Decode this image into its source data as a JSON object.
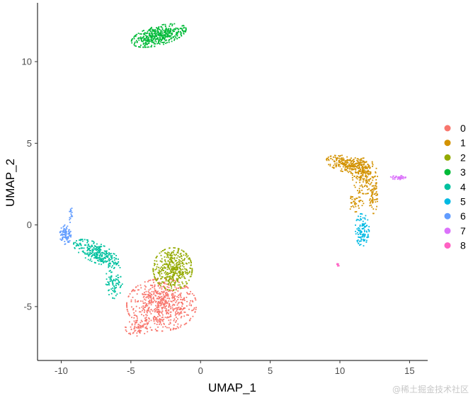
{
  "chart_data": {
    "type": "scatter",
    "xlabel": "UMAP_1",
    "ylabel": "UMAP_2",
    "xlim": [
      -11.7,
      16.3
    ],
    "ylim": [
      -8.3,
      13.6
    ],
    "x_ticks": [
      -10,
      -5,
      0,
      5,
      10,
      15
    ],
    "y_ticks": [
      -5,
      0,
      5,
      10
    ],
    "x_tick_labels": [
      "-10",
      "-5",
      "0",
      "5",
      "10",
      "15"
    ],
    "y_tick_labels": [
      "-5",
      "0",
      "5",
      "10"
    ],
    "legend_position": "right",
    "grid": false,
    "series": [
      {
        "name": "0",
        "color": "#F8766D",
        "clusters": [
          {
            "cx": -2.8,
            "cy": -4.9,
            "rx": 2.5,
            "ry": 1.6,
            "angle": 0,
            "n": 650
          },
          {
            "cx": -4.5,
            "cy": -6.3,
            "rx": 0.9,
            "ry": 0.5,
            "angle": 0,
            "n": 60
          }
        ]
      },
      {
        "name": "1",
        "color": "#D39200",
        "clusters": [
          {
            "cx": 10.6,
            "cy": 3.7,
            "rx": 1.6,
            "ry": 0.5,
            "angle": -10,
            "n": 260
          },
          {
            "cx": 11.8,
            "cy": 3.0,
            "rx": 0.9,
            "ry": 1.1,
            "angle": 0,
            "n": 180
          },
          {
            "cx": 12.4,
            "cy": 1.7,
            "rx": 0.3,
            "ry": 1.0,
            "angle": 0,
            "n": 60
          },
          {
            "cx": 11.1,
            "cy": 1.4,
            "rx": 0.6,
            "ry": 0.6,
            "angle": 0,
            "n": 40
          }
        ]
      },
      {
        "name": "2",
        "color": "#93AA00",
        "clusters": [
          {
            "cx": -2.0,
            "cy": -2.7,
            "rx": 1.4,
            "ry": 1.3,
            "angle": 0,
            "n": 420
          }
        ]
      },
      {
        "name": "3",
        "color": "#00BA38",
        "clusters": [
          {
            "cx": -3.0,
            "cy": 11.6,
            "rx": 2.0,
            "ry": 0.6,
            "angle": 12,
            "n": 420
          }
        ]
      },
      {
        "name": "4",
        "color": "#00C19F",
        "clusters": [
          {
            "cx": -7.5,
            "cy": -1.7,
            "rx": 1.7,
            "ry": 0.6,
            "angle": -20,
            "n": 280
          },
          {
            "cx": -6.2,
            "cy": -3.4,
            "rx": 0.6,
            "ry": 1.1,
            "angle": 0,
            "n": 90
          }
        ]
      },
      {
        "name": "5",
        "color": "#00B9E3",
        "clusters": [
          {
            "cx": 11.6,
            "cy": -0.3,
            "rx": 0.5,
            "ry": 1.0,
            "angle": 0,
            "n": 110
          }
        ]
      },
      {
        "name": "6",
        "color": "#619CFF",
        "clusters": [
          {
            "cx": -9.7,
            "cy": -0.6,
            "rx": 0.4,
            "ry": 0.6,
            "angle": 0,
            "n": 90
          },
          {
            "cx": -9.3,
            "cy": 0.7,
            "rx": 0.15,
            "ry": 0.6,
            "angle": 0,
            "n": 15
          }
        ]
      },
      {
        "name": "7",
        "color": "#DB72FB",
        "clusters": [
          {
            "cx": 14.2,
            "cy": 2.9,
            "rx": 0.6,
            "ry": 0.12,
            "angle": 0,
            "n": 35
          }
        ]
      },
      {
        "name": "8",
        "color": "#FF61C3",
        "clusters": [
          {
            "cx": 9.85,
            "cy": -2.45,
            "rx": 0.1,
            "ry": 0.1,
            "angle": 0,
            "n": 6
          }
        ]
      }
    ]
  },
  "watermark": "@稀土掘金技术社区"
}
